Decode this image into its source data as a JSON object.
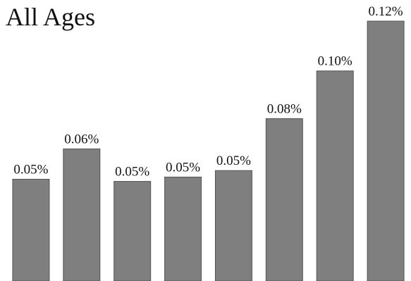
{
  "chart_data": {
    "type": "bar",
    "title": "All Ages",
    "categories": [
      null,
      null,
      null,
      null,
      null,
      null,
      null,
      null
    ],
    "values": [
      0.047,
      0.061,
      0.046,
      0.048,
      0.051,
      0.075,
      0.097,
      0.12
    ],
    "value_labels": [
      "0.05%",
      "0.06%",
      "0.05%",
      "0.05%",
      "0.05%",
      "0.08%",
      "0.10%",
      "0.12%"
    ],
    "color": "#7f7f7f",
    "ylim": [
      0,
      0.12
    ]
  }
}
